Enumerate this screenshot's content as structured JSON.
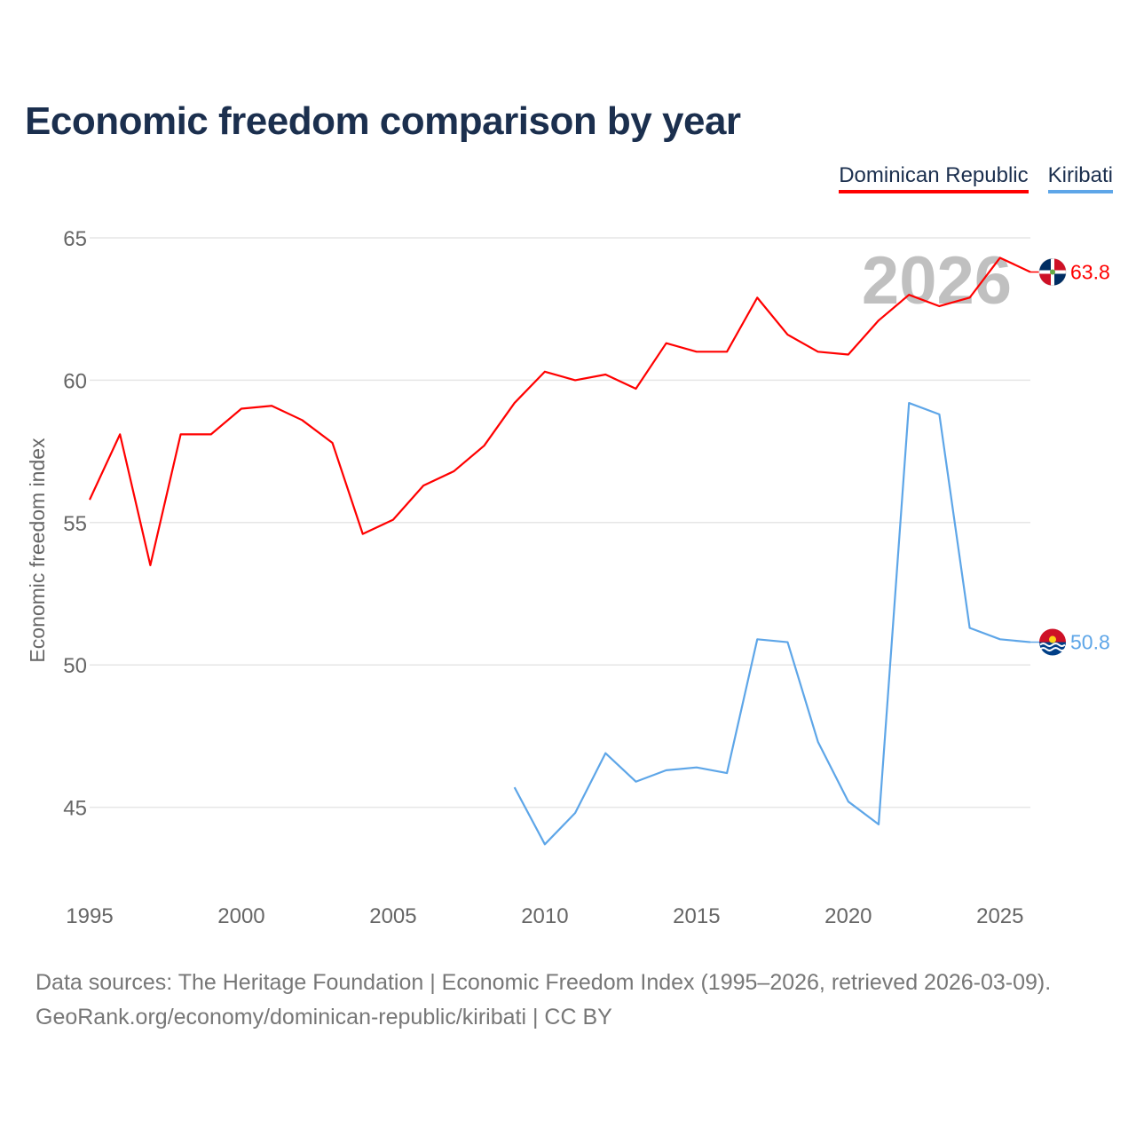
{
  "title": "Economic freedom comparison by year",
  "legend": [
    {
      "label": "Dominican Republic",
      "color": "#ff0000"
    },
    {
      "label": "Kiribati",
      "color": "#5ea6e8"
    }
  ],
  "source_line1": "Data sources: The Heritage Foundation | Economic Freedom Index (1995–2026, retrieved 2026-03-09).",
  "source_line2": "GeoRank.org/economy/dominican-republic/kiribati | CC BY",
  "chart_data": {
    "type": "line",
    "title": "Economic freedom comparison by year",
    "ylabel": "Economic freedom index",
    "xlabel": "",
    "xlim": [
      1995,
      2026
    ],
    "ylim": [
      42,
      66
    ],
    "xticks": [
      1995,
      2000,
      2005,
      2010,
      2015,
      2020,
      2025
    ],
    "yticks": [
      45,
      50,
      55,
      60,
      65
    ],
    "grid": true,
    "year_watermark": "2026",
    "series": [
      {
        "name": "Dominican Republic",
        "color": "#ff0000",
        "end_label": "63.8",
        "x": [
          1995,
          1996,
          1997,
          1998,
          1999,
          2000,
          2001,
          2002,
          2003,
          2004,
          2005,
          2006,
          2007,
          2008,
          2009,
          2010,
          2011,
          2012,
          2013,
          2014,
          2015,
          2016,
          2017,
          2018,
          2019,
          2020,
          2021,
          2022,
          2023,
          2024,
          2025,
          2026
        ],
        "values": [
          55.8,
          58.1,
          53.5,
          58.1,
          58.1,
          59.0,
          59.1,
          58.6,
          57.8,
          54.6,
          55.1,
          56.3,
          56.8,
          57.7,
          59.2,
          60.3,
          60.0,
          60.2,
          59.7,
          61.3,
          61.0,
          61.0,
          62.9,
          61.6,
          61.0,
          60.9,
          62.1,
          63.0,
          62.6,
          62.9,
          64.3,
          63.8
        ]
      },
      {
        "name": "Kiribati",
        "color": "#5ea6e8",
        "end_label": "50.8",
        "x": [
          2009,
          2010,
          2011,
          2012,
          2013,
          2014,
          2015,
          2016,
          2017,
          2018,
          2019,
          2020,
          2021,
          2022,
          2023,
          2024,
          2025,
          2026
        ],
        "values": [
          45.7,
          43.7,
          44.8,
          46.9,
          45.9,
          46.3,
          46.4,
          46.2,
          50.9,
          50.8,
          47.3,
          45.2,
          44.4,
          59.2,
          58.8,
          51.3,
          50.9,
          50.8
        ]
      }
    ]
  }
}
